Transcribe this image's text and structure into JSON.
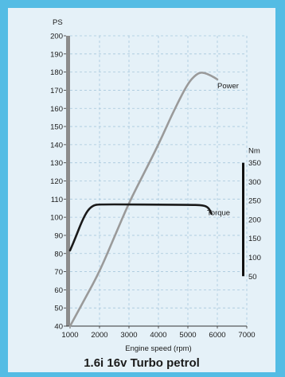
{
  "chart_data": {
    "type": "line",
    "title": "1.6i 16v Turbo petrol",
    "xlabel": "Engine speed (rpm)",
    "x_ticks": [
      1000,
      2000,
      3000,
      4000,
      5000,
      6000,
      7000
    ],
    "xlim": [
      1000,
      7000
    ],
    "left_axis": {
      "unit": "PS",
      "ylim": [
        40,
        200
      ],
      "ticks": [
        40,
        50,
        60,
        70,
        80,
        90,
        100,
        110,
        120,
        130,
        140,
        150,
        160,
        170,
        180,
        190,
        200
      ]
    },
    "right_axis": {
      "unit": "Nm",
      "ylim": [
        50,
        350
      ],
      "ticks": [
        50,
        100,
        150,
        200,
        250,
        300,
        350
      ]
    },
    "grid": true,
    "series": [
      {
        "name": "Power",
        "axis": "left",
        "color": "#9a9a9a",
        "points": [
          [
            1000,
            40
          ],
          [
            1500,
            55
          ],
          [
            2000,
            70
          ],
          [
            2500,
            89
          ],
          [
            3000,
            108
          ],
          [
            3500,
            124
          ],
          [
            4000,
            140
          ],
          [
            4500,
            158
          ],
          [
            5000,
            174
          ],
          [
            5300,
            179
          ],
          [
            5500,
            180
          ],
          [
            5800,
            178
          ],
          [
            6000,
            176
          ]
        ]
      },
      {
        "name": "Torque",
        "axis": "right",
        "color": "#1a1a1a",
        "points": [
          [
            1000,
            118
          ],
          [
            1200,
            155
          ],
          [
            1400,
            195
          ],
          [
            1600,
            225
          ],
          [
            1800,
            238
          ],
          [
            2000,
            240
          ],
          [
            3000,
            240
          ],
          [
            4000,
            239
          ],
          [
            5000,
            239
          ],
          [
            5500,
            238
          ],
          [
            5700,
            232
          ],
          [
            5800,
            215
          ]
        ]
      }
    ]
  }
}
